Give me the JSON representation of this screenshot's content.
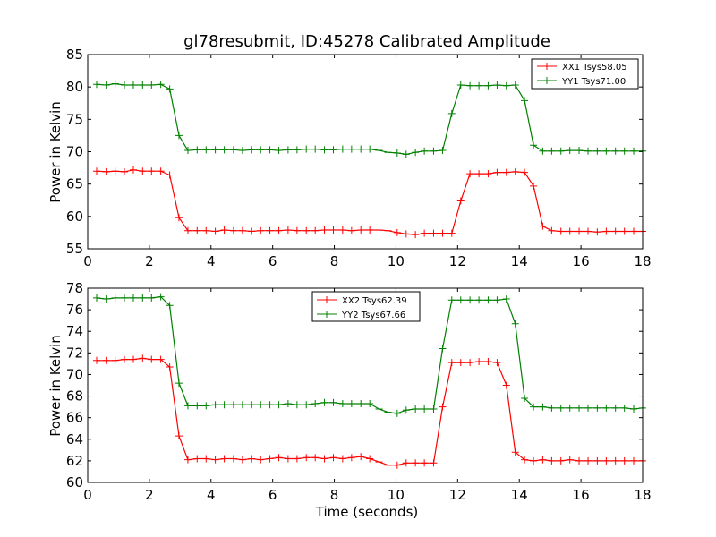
{
  "chart_data": [
    {
      "type": "line",
      "title": "gl78resubmit, ID:45278 Calibrated Amplitude",
      "xlabel": "",
      "ylabel": "Power in Kelvin",
      "xlim": [
        0,
        18
      ],
      "ylim": [
        55,
        85
      ],
      "xticks": [
        0,
        2,
        4,
        6,
        8,
        10,
        12,
        14,
        16,
        18
      ],
      "yticks": [
        55,
        60,
        65,
        70,
        75,
        80,
        85
      ],
      "grid": false,
      "legend_position": "top-right",
      "x": [
        0.29,
        0.6,
        0.89,
        1.19,
        1.48,
        1.78,
        2.07,
        2.37,
        2.66,
        2.96,
        3.25,
        3.55,
        3.84,
        4.14,
        4.43,
        4.73,
        5.02,
        5.32,
        5.61,
        5.91,
        6.2,
        6.5,
        6.79,
        7.09,
        7.38,
        7.68,
        7.97,
        8.27,
        8.56,
        8.86,
        9.15,
        9.45,
        9.74,
        10.04,
        10.33,
        10.63,
        10.92,
        11.22,
        11.51,
        11.81,
        12.1,
        12.4,
        12.69,
        12.99,
        13.28,
        13.58,
        13.87,
        14.17,
        14.46,
        14.76,
        15.05,
        15.35,
        15.64,
        15.94,
        16.23,
        16.53,
        16.82,
        17.12,
        17.41,
        17.71,
        18.0
      ],
      "series": [
        {
          "name": "XX1 Tsys58.05",
          "color": "#ff0000",
          "values": [
            67.0,
            66.9,
            67.0,
            66.9,
            67.2,
            67.0,
            67.0,
            67.0,
            66.4,
            59.8,
            57.8,
            57.8,
            57.8,
            57.7,
            57.9,
            57.8,
            57.8,
            57.7,
            57.8,
            57.8,
            57.8,
            57.9,
            57.8,
            57.8,
            57.8,
            57.9,
            57.9,
            57.9,
            57.8,
            57.9,
            57.9,
            57.9,
            57.8,
            57.5,
            57.3,
            57.2,
            57.4,
            57.4,
            57.4,
            57.4,
            62.4,
            66.6,
            66.6,
            66.6,
            66.8,
            66.8,
            66.9,
            66.8,
            64.7,
            58.5,
            57.8,
            57.7,
            57.7,
            57.7,
            57.7,
            57.6,
            57.7,
            57.7,
            57.7,
            57.7,
            57.7
          ]
        },
        {
          "name": "YY1 Tsys71.00",
          "color": "#008000",
          "values": [
            80.4,
            80.3,
            80.5,
            80.3,
            80.3,
            80.3,
            80.3,
            80.4,
            79.7,
            72.5,
            70.2,
            70.3,
            70.3,
            70.3,
            70.3,
            70.3,
            70.2,
            70.3,
            70.3,
            70.3,
            70.2,
            70.3,
            70.3,
            70.4,
            70.4,
            70.3,
            70.3,
            70.4,
            70.4,
            70.4,
            70.4,
            70.2,
            69.9,
            69.8,
            69.6,
            69.9,
            70.1,
            70.1,
            70.2,
            75.9,
            80.3,
            80.2,
            80.2,
            80.2,
            80.3,
            80.2,
            80.3,
            77.9,
            71.0,
            70.1,
            70.1,
            70.1,
            70.2,
            70.2,
            70.1,
            70.1,
            70.1,
            70.1,
            70.1,
            70.1,
            70.1
          ]
        }
      ]
    },
    {
      "type": "line",
      "title": "",
      "xlabel": "Time (seconds)",
      "ylabel": "Power in Kelvin",
      "xlim": [
        0,
        18
      ],
      "ylim": [
        60,
        78
      ],
      "xticks": [
        0,
        2,
        4,
        6,
        8,
        10,
        12,
        14,
        16,
        18
      ],
      "yticks": [
        60,
        62,
        64,
        66,
        68,
        70,
        72,
        74,
        76,
        78
      ],
      "grid": false,
      "legend_position": "top-center",
      "x": [
        0.29,
        0.6,
        0.89,
        1.19,
        1.48,
        1.78,
        2.07,
        2.37,
        2.66,
        2.96,
        3.25,
        3.55,
        3.84,
        4.14,
        4.43,
        4.73,
        5.02,
        5.32,
        5.61,
        5.91,
        6.2,
        6.5,
        6.79,
        7.09,
        7.38,
        7.68,
        7.97,
        8.27,
        8.56,
        8.86,
        9.15,
        9.45,
        9.74,
        10.04,
        10.33,
        10.63,
        10.92,
        11.22,
        11.51,
        11.81,
        12.1,
        12.4,
        12.69,
        12.99,
        13.28,
        13.58,
        13.87,
        14.17,
        14.46,
        14.76,
        15.05,
        15.35,
        15.64,
        15.94,
        16.23,
        16.53,
        16.82,
        17.12,
        17.41,
        17.71,
        18.0
      ],
      "series": [
        {
          "name": "XX2 Tsys62.39",
          "color": "#ff0000",
          "values": [
            71.3,
            71.3,
            71.3,
            71.4,
            71.4,
            71.5,
            71.4,
            71.4,
            70.7,
            64.3,
            62.1,
            62.2,
            62.2,
            62.1,
            62.2,
            62.2,
            62.1,
            62.2,
            62.1,
            62.2,
            62.3,
            62.2,
            62.2,
            62.3,
            62.3,
            62.2,
            62.3,
            62.2,
            62.3,
            62.4,
            62.2,
            61.9,
            61.6,
            61.6,
            61.8,
            61.8,
            61.8,
            61.8,
            67.0,
            71.1,
            71.1,
            71.1,
            71.2,
            71.2,
            71.1,
            69.0,
            62.8,
            62.1,
            62.0,
            62.1,
            62.0,
            62.0,
            62.1,
            62.0,
            62.0,
            62.0,
            62.0,
            62.0,
            62.0,
            62.0,
            62.0
          ]
        },
        {
          "name": "YY2 Tsys67.66",
          "color": "#008000",
          "values": [
            77.1,
            77.0,
            77.1,
            77.1,
            77.1,
            77.1,
            77.1,
            77.2,
            76.4,
            69.2,
            67.1,
            67.1,
            67.1,
            67.2,
            67.2,
            67.2,
            67.2,
            67.2,
            67.2,
            67.2,
            67.2,
            67.3,
            67.2,
            67.2,
            67.3,
            67.4,
            67.4,
            67.3,
            67.3,
            67.3,
            67.3,
            66.8,
            66.5,
            66.4,
            66.7,
            66.8,
            66.8,
            66.8,
            72.4,
            76.9,
            76.9,
            76.9,
            76.9,
            76.9,
            76.9,
            77.0,
            74.7,
            67.8,
            67.0,
            67.0,
            66.9,
            66.9,
            66.9,
            66.9,
            66.9,
            66.9,
            66.9,
            66.9,
            66.9,
            66.8,
            66.9
          ]
        }
      ]
    }
  ]
}
